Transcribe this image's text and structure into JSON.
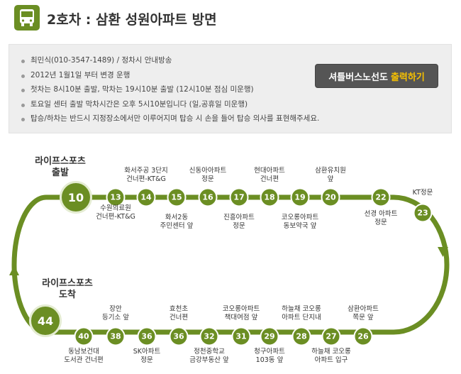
{
  "header": {
    "title": "2호차 : 삼환 성원아파트 방면",
    "icon": "bus-icon",
    "accent": "#6b8e23"
  },
  "info": {
    "items": [
      "최민식(010-3547-1489) / 정차시 안내방송",
      "2012년 1월1일 부터 변경 운행",
      "첫차는 8시10분 출발, 막차는 19시10분 출발 (12시10분 점심 미운행)",
      "토요일 센터 출발 막차시간은 오후 5시10분입니다 (일,공휴일 미운행)",
      "탑승/하차는 반드시 지정장소에서만 이루어지며 탑승 시 손을 들어 탑승 의사를 표현해주세요."
    ],
    "print_button": {
      "label": "셔틀버스노선도",
      "highlight": "출력하기",
      "highlight_color": "#f6c000"
    }
  },
  "route": {
    "line_color": "#6b8e23",
    "start": {
      "label_line1": "라이프스포츠",
      "label_line2": "출발",
      "number": "10"
    },
    "end": {
      "label_line1": "라이프스포츠",
      "label_line2": "도착",
      "number": "44"
    },
    "top_stops": [
      {
        "number": "13",
        "label": "수원의료원\n건너편-KT&G"
      },
      {
        "number": "14",
        "label": "화서주공 3단지\n건너편-KT&G"
      },
      {
        "number": "15",
        "label": "화서2동\n주민센터 앞"
      },
      {
        "number": "16",
        "label": "신동아아파트\n정문"
      },
      {
        "number": "17",
        "label": "진흥아파트\n정문"
      },
      {
        "number": "18",
        "label": "현대아파트\n건너편"
      },
      {
        "number": "19",
        "label": "코오롱아파트\n동보약국 앞"
      },
      {
        "number": "20",
        "label": "삼환유치원\n앞"
      },
      {
        "number": "22",
        "label": "선경 아파트\n정문"
      },
      {
        "number": "23",
        "label": "KT정문"
      }
    ],
    "bottom_stops": [
      {
        "number": "26",
        "label": "삼환아파트\n쪽문 앞"
      },
      {
        "number": "27",
        "label": "하늘채 코오롱\n아파트 입구"
      },
      {
        "number": "28",
        "label": "하늘채 코오롱\n아파트 단지내"
      },
      {
        "number": "29",
        "label": "청구아파트\n103동 앞"
      },
      {
        "number": "31",
        "label": "코오롱아파트\n책대여점 앞"
      },
      {
        "number": "32",
        "label": "정천중학교\n금강부동산 앞"
      },
      {
        "number": "36",
        "label": "효천초\n건너편"
      },
      {
        "number": "36",
        "label": "SK아파트\n정문"
      },
      {
        "number": "38",
        "label": "장안\n등기소 앞"
      },
      {
        "number": "40",
        "label": "동남보건대\n도서관 건너편"
      }
    ]
  }
}
